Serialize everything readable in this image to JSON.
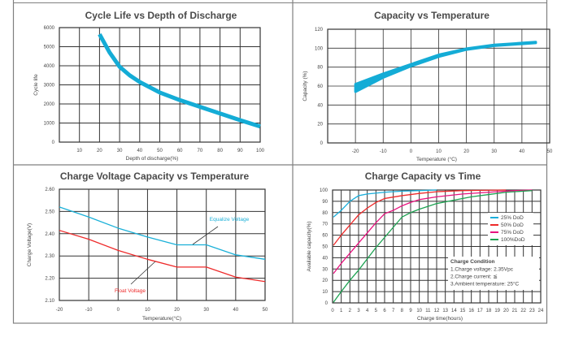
{
  "chart_data": [
    {
      "type": "line",
      "title": "Cycle Life vs Depth of Discharge",
      "xlabel": "Depth of discharge(%)",
      "ylabel": "Cycle life",
      "xlim": [
        0,
        100
      ],
      "ylim": [
        0,
        6000
      ],
      "xticks": [
        10,
        20,
        30,
        40,
        50,
        60,
        70,
        80,
        90,
        100
      ],
      "yticks": [
        0,
        1000,
        2000,
        3000,
        4000,
        5000,
        6000
      ],
      "grid": true,
      "series": [
        {
          "color": "#14acd6",
          "x": [
            20,
            25,
            30,
            35,
            40,
            50,
            60,
            70,
            80,
            90,
            100
          ],
          "y": [
            5650,
            4700,
            3950,
            3500,
            3150,
            2600,
            2200,
            1850,
            1500,
            1150,
            820
          ]
        }
      ]
    },
    {
      "type": "area",
      "title": "Capacity vs Temperature",
      "xlabel": "Temperature (°C)",
      "ylabel": "Capacity (%)",
      "xlim": [
        -30,
        50
      ],
      "ylim": [
        0,
        120
      ],
      "xticks": [
        -20,
        -10,
        0,
        10,
        20,
        30,
        40,
        50
      ],
      "yticks": [
        0,
        20,
        40,
        60,
        80,
        100,
        120
      ],
      "grid": true,
      "series": [
        {
          "color": "#14acd6",
          "x": [
            -20,
            -10,
            0,
            10,
            20,
            30,
            40,
            45
          ],
          "y_low": [
            54,
            69,
            81,
            91,
            98.5,
            102.5,
            104.5,
            105.5
          ],
          "y_high": [
            62,
            73,
            83,
            93,
            99.5,
            103.5,
            105.5,
            106.5
          ]
        }
      ]
    },
    {
      "type": "line",
      "title": "Charge Voltage  Capacity  vs  Temperature",
      "xlabel": "Temperature(°C)",
      "ylabel": "Charge Voltage(V)",
      "xlim": [
        -20,
        50
      ],
      "ylim": [
        2.1,
        2.6
      ],
      "xticks": [
        -20,
        -10,
        0,
        10,
        20,
        30,
        40,
        50
      ],
      "yticks": [
        "2.10",
        "2.20",
        "2.30",
        "2.40",
        "2.50",
        "2.60"
      ],
      "grid": true,
      "series": [
        {
          "name": "Equalize  Voltage",
          "color": "#1ab0d8",
          "x": [
            -20,
            -10,
            0,
            10,
            20,
            30,
            40,
            50
          ],
          "y": [
            2.52,
            2.475,
            2.425,
            2.385,
            2.35,
            2.35,
            2.305,
            2.285
          ]
        },
        {
          "name": "Float  Voltage",
          "color": "#ee2a2a",
          "x": [
            -20,
            -10,
            0,
            10,
            20,
            30,
            40,
            50
          ],
          "y": [
            2.415,
            2.375,
            2.325,
            2.285,
            2.25,
            2.25,
            2.205,
            2.185
          ]
        }
      ]
    },
    {
      "type": "line",
      "title": "Charge  Capacity  vs  Time",
      "xlabel": "Charge time(hours)",
      "ylabel": "Available capacity(%)",
      "xlim": [
        0,
        24
      ],
      "ylim": [
        0,
        100
      ],
      "xticks": [
        0,
        1,
        2,
        3,
        4,
        5,
        6,
        7,
        8,
        9,
        10,
        11,
        12,
        13,
        14,
        15,
        16,
        17,
        18,
        19,
        20,
        21,
        22,
        23,
        24
      ],
      "yticks": [
        0,
        10,
        20,
        30,
        40,
        50,
        60,
        70,
        80,
        90,
        100
      ],
      "grid": true,
      "legend": "right",
      "series": [
        {
          "name": "25%  DoD",
          "color": "#19aedb",
          "x": [
            0.1,
            1,
            2,
            3,
            4,
            6,
            8,
            10,
            12
          ],
          "y": [
            76,
            82,
            90,
            95,
            96.5,
            98,
            99,
            99.5,
            100
          ]
        },
        {
          "name": "50%  DoD",
          "color": "#ee2a2a",
          "x": [
            0.1,
            1,
            2,
            3,
            4,
            5,
            6,
            8,
            10,
            12,
            15,
            20
          ],
          "y": [
            51,
            60,
            69,
            78,
            84,
            89,
            92.5,
            95,
            97,
            98.5,
            99.5,
            100
          ]
        },
        {
          "name": "75%  DoD",
          "color": "#e8137f",
          "x": [
            0.1,
            1,
            2,
            3,
            4,
            5,
            6,
            7,
            8,
            9,
            10,
            12,
            15,
            18,
            21,
            23
          ],
          "y": [
            26,
            35,
            44,
            53,
            62,
            71,
            79,
            82,
            86,
            89,
            91.5,
            94,
            96.5,
            98,
            99.5,
            100
          ]
        },
        {
          "name": "100%DoD",
          "color": "#1ca251",
          "x": [
            0.1,
            1,
            2,
            3,
            4,
            5,
            6,
            7,
            8,
            9,
            10,
            12,
            14,
            16,
            18,
            20,
            23
          ],
          "y": [
            0.5,
            10,
            20,
            29,
            39,
            49,
            58,
            67,
            76,
            80,
            83,
            88,
            91,
            94,
            96,
            98,
            99.5
          ]
        }
      ],
      "annotation": {
        "heading": "Charge Condition",
        "lines": [
          "1.Charge voltage: 2.35Vpc",
          "2.Charge current: ≦",
          "3.Ambient temperature: 25°C"
        ]
      }
    }
  ]
}
